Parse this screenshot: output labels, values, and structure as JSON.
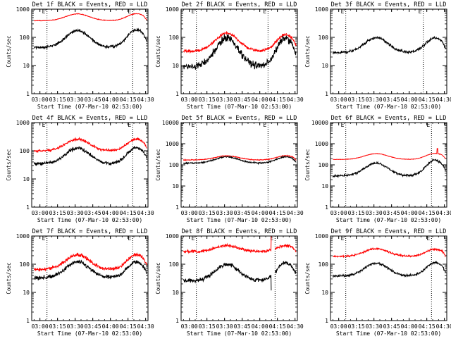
{
  "figure": {
    "y_axis_label": "Counts/sec",
    "x_axis_label": "Start Time (07-Mar-10 02:53:00)",
    "series_colors": {
      "events": "#000000",
      "lld": "#ff0000"
    }
  },
  "chart_data": [
    {
      "type": "line",
      "title": "Det 1f BLACK = Events, RED = LLD",
      "xlabel": "Start Time (07-Mar-10 02:53:00)",
      "ylabel": "Counts/sec",
      "y_scale": "log",
      "ylim": [
        1,
        1000
      ],
      "xlim": [
        "02:53",
        "04:32"
      ],
      "x_ticks": [
        "03:00",
        "03:15",
        "03:30",
        "03:45",
        "04:00",
        "04:15",
        "04:30"
      ],
      "y_ticks": [
        "1",
        "10",
        "100",
        "1000"
      ],
      "markers": [
        "03:06",
        "04:19"
      ],
      "marker_label": "E",
      "events": {
        "base": 44,
        "peak1": 175,
        "peak2": 190,
        "noise": 0.05
      },
      "lld": {
        "base": 390,
        "peak1": 680,
        "peak2": 690,
        "noise": 0.01
      }
    },
    {
      "type": "line",
      "title": "Det 2f BLACK = Events, RED = LLD",
      "xlabel": "Start Time (07-Mar-10 02:53:00)",
      "ylabel": "Counts/sec",
      "y_scale": "log",
      "ylim": [
        1,
        1000
      ],
      "xlim": [
        "02:53",
        "04:32"
      ],
      "x_ticks": [
        "03:00",
        "03:15",
        "03:30",
        "03:45",
        "04:00",
        "04:15",
        "04:30"
      ],
      "y_ticks": [
        "1",
        "10",
        "100",
        "1000"
      ],
      "markers": [
        "03:06",
        "04:07"
      ],
      "marker_label": "E",
      "events": {
        "base": 9,
        "peak1": 95,
        "peak2": 95,
        "noise": 0.12
      },
      "lld": {
        "base": 32,
        "peak1": 140,
        "peak2": 125,
        "noise": 0.05
      }
    },
    {
      "type": "line",
      "title": "Det 3f BLACK = Events, RED = LLD",
      "xlabel": "Start Time (07-Mar-10 02:53:00)",
      "ylabel": "Counts/sec",
      "y_scale": "log",
      "ylim": [
        1,
        1000
      ],
      "xlim": [
        "02:53",
        "04:32"
      ],
      "x_ticks": [
        "03:00",
        "03:15",
        "03:30",
        "03:45",
        "04:00",
        "04:15",
        "04:30"
      ],
      "y_ticks": [
        "1",
        "10",
        "100",
        "1000"
      ],
      "markers": [
        "03:06",
        "04:12"
      ],
      "marker_label": "E",
      "events": {
        "base": 29,
        "peak1": 98,
        "peak2": 98,
        "noise": 0.05
      }
    },
    {
      "type": "line",
      "title": "Det 4f BLACK = Events, RED = LLD",
      "xlabel": "Start Time (07-Mar-10 02:53:00)",
      "ylabel": "Counts/sec",
      "y_scale": "log",
      "ylim": [
        1,
        1000
      ],
      "xlim": [
        "02:53",
        "04:32"
      ],
      "x_ticks": [
        "03:00",
        "03:15",
        "03:30",
        "03:45",
        "04:00",
        "04:15",
        "04:30"
      ],
      "y_ticks": [
        "1",
        "10",
        "100",
        "1000"
      ],
      "markers": [
        "03:06",
        "04:19"
      ],
      "marker_label": "E",
      "events": {
        "base": 35,
        "peak1": 125,
        "peak2": 130,
        "noise": 0.06
      },
      "lld": {
        "base": 100,
        "peak1": 260,
        "peak2": 260,
        "noise": 0.04
      }
    },
    {
      "type": "line",
      "title": "Det 5f BLACK = Events, RED = LLD",
      "xlabel": "Start Time (07-Mar-10 02:53:00)",
      "ylabel": "Counts/sec",
      "y_scale": "log",
      "ylim": [
        1,
        10000
      ],
      "xlim": [
        "02:53",
        "04:32"
      ],
      "x_ticks": [
        "03:00",
        "03:15",
        "03:30",
        "03:45",
        "04:00",
        "04:15",
        "04:30"
      ],
      "y_ticks": [
        "1",
        "10",
        "100",
        "1000",
        "10000"
      ],
      "markers": [
        "03:06",
        "04:07"
      ],
      "marker_label": "E",
      "events": {
        "base": 120,
        "peak1": 240,
        "peak2": 240,
        "noise": 0.03
      },
      "lld": {
        "base": 170,
        "peak1": 270,
        "peak2": 270,
        "noise": 0.02
      }
    },
    {
      "type": "line",
      "title": "Det 6f BLACK = Events, RED = LLD",
      "xlabel": "Start Time (07-Mar-10 02:53:00)",
      "ylabel": "Counts/sec",
      "y_scale": "log",
      "ylim": [
        1,
        10000
      ],
      "xlim": [
        "02:53",
        "04:32"
      ],
      "x_ticks": [
        "03:00",
        "03:15",
        "03:30",
        "03:45",
        "04:00",
        "04:15",
        "04:30"
      ],
      "y_ticks": [
        "1",
        "10",
        "100",
        "1000",
        "10000"
      ],
      "markers": [
        "03:06",
        "04:19"
      ],
      "marker_label": "E",
      "events": {
        "base": 30,
        "peak1": 120,
        "peak2": 170,
        "noise": 0.05
      },
      "lld": {
        "base": 180,
        "peak1": 340,
        "peak2": 350,
        "noise": 0.01,
        "spike_at": "04:24",
        "spike_value": 600
      }
    },
    {
      "type": "line",
      "title": "Det 7f BLACK = Events, RED = LLD",
      "xlabel": "Start Time (07-Mar-10 02:53:00)",
      "ylabel": "Counts/sec",
      "y_scale": "log",
      "ylim": [
        1,
        1000
      ],
      "xlim": [
        "02:53",
        "04:32"
      ],
      "x_ticks": [
        "03:00",
        "03:15",
        "03:30",
        "03:45",
        "04:00",
        "04:15",
        "04:30"
      ],
      "y_ticks": [
        "1",
        "10",
        "100",
        "1000"
      ],
      "markers": [
        "03:06",
        "04:19"
      ],
      "marker_label": "E",
      "events": {
        "base": 33,
        "peak1": 120,
        "peak2": 120,
        "noise": 0.07
      },
      "lld": {
        "base": 65,
        "peak1": 220,
        "peak2": 220,
        "noise": 0.06
      }
    },
    {
      "type": "line",
      "title": "Det 8f BLACK = Events, RED = LLD",
      "xlabel": "Start Time (07-Mar-10 02:53:00)",
      "ylabel": "Counts/sec",
      "y_scale": "log",
      "ylim": [
        1,
        1000
      ],
      "xlim": [
        "02:53",
        "04:32"
      ],
      "x_ticks": [
        "03:00",
        "03:15",
        "03:30",
        "03:45",
        "04:00",
        "04:15",
        "04:30"
      ],
      "y_ticks": [
        "1",
        "10",
        "100",
        "1000"
      ],
      "markers": [
        "03:06",
        "04:13"
      ],
      "marker_label": "E",
      "events": {
        "base": 26,
        "peak1": 100,
        "peak2": 110,
        "noise": 0.07,
        "gap": [
          "04:10",
          "04:13"
        ],
        "dip_at": "04:10",
        "dip_value": 12
      },
      "lld": {
        "base": 280,
        "peak1": 460,
        "peak2": 460,
        "noise": 0.05,
        "gap": [
          "04:10",
          "04:13"
        ],
        "spike_at": "04:10",
        "spike_value": 1000
      }
    },
    {
      "type": "line",
      "title": "Det 9f BLACK = Events, RED = LLD",
      "xlabel": "Start Time (07-Mar-10 02:53:00)",
      "ylabel": "Counts/sec",
      "y_scale": "log",
      "ylim": [
        1,
        1000
      ],
      "xlim": [
        "02:53",
        "04:32"
      ],
      "x_ticks": [
        "03:00",
        "03:15",
        "03:30",
        "03:45",
        "04:00",
        "04:15",
        "04:30"
      ],
      "y_ticks": [
        "1",
        "10",
        "100",
        "1000"
      ],
      "markers": [
        "03:06",
        "04:19"
      ],
      "marker_label": "E",
      "events": {
        "base": 38,
        "peak1": 110,
        "peak2": 115,
        "noise": 0.04
      },
      "lld": {
        "base": 190,
        "peak1": 360,
        "peak2": 340,
        "noise": 0.03
      }
    }
  ]
}
